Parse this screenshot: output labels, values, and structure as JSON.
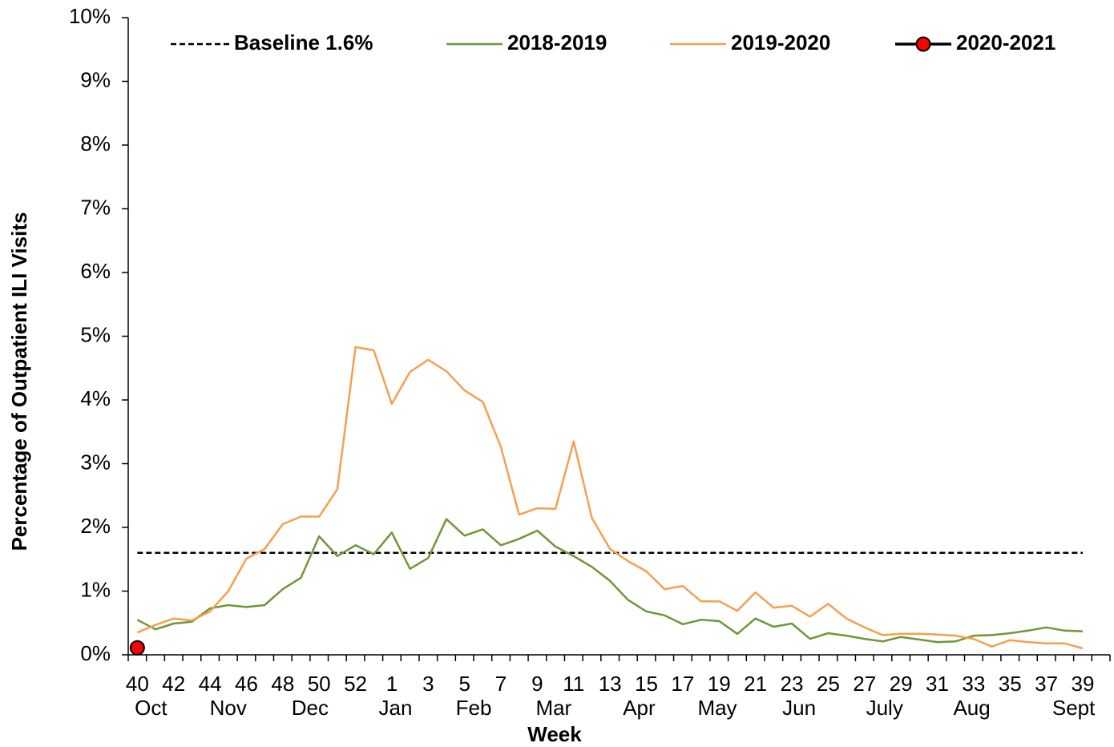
{
  "chart_data": {
    "type": "line",
    "xlabel": "Week",
    "ylabel": "Percentage of Outpatient ILI Visits",
    "categories": [
      "40",
      null,
      "42",
      null,
      "44",
      null,
      "46",
      null,
      "48",
      null,
      "50",
      null,
      "52",
      null,
      "1",
      null,
      "3",
      null,
      "5",
      null,
      "7",
      null,
      "9",
      null,
      "11",
      null,
      "13",
      null,
      "15",
      null,
      "17",
      null,
      "19",
      null,
      "21",
      null,
      "23",
      null,
      "25",
      null,
      "27",
      null,
      "29",
      null,
      "31",
      null,
      "33",
      null,
      "35",
      null,
      "37",
      null,
      "39"
    ],
    "months": [
      "Oct",
      "Nov",
      "Dec",
      "Jan",
      "Feb",
      "Mar",
      "Apr",
      "May",
      "Jun",
      "July",
      "Aug",
      "Sept"
    ],
    "ylim": [
      0,
      10
    ],
    "yticks": [
      {
        "value": 0,
        "label": "0%"
      },
      {
        "value": 1,
        "label": "1%"
      },
      {
        "value": 2,
        "label": "2%"
      },
      {
        "value": 3,
        "label": "3%"
      },
      {
        "value": 4,
        "label": "4%"
      },
      {
        "value": 5,
        "label": "5%"
      },
      {
        "value": 6,
        "label": "6%"
      },
      {
        "value": 7,
        "label": "7%"
      },
      {
        "value": 8,
        "label": "8%"
      },
      {
        "value": 9,
        "label": "9%"
      },
      {
        "value": 10,
        "label": "10%"
      }
    ],
    "baseline": {
      "name": "Baseline 1.6%",
      "value": 1.6,
      "color": "#000000"
    },
    "series": [
      {
        "name": "2018-2019",
        "color": "#70963a",
        "values": [
          0.55,
          0.4,
          0.49,
          0.52,
          0.73,
          0.78,
          0.75,
          0.78,
          1.03,
          1.21,
          1.86,
          1.55,
          1.72,
          1.58,
          1.92,
          1.35,
          1.52,
          2.13,
          1.87,
          1.97,
          1.72,
          1.82,
          1.95,
          1.7,
          1.55,
          1.38,
          1.16,
          0.86,
          0.68,
          0.62,
          0.48,
          0.55,
          0.53,
          0.33,
          0.57,
          0.44,
          0.49,
          0.25,
          0.34,
          0.3,
          0.25,
          0.21,
          0.28,
          0.24,
          0.2,
          0.21,
          0.3,
          0.31,
          0.34,
          0.38,
          0.43,
          0.38,
          0.37
        ]
      },
      {
        "name": "2019-2020",
        "color": "#f5a04f",
        "values": [
          0.35,
          0.47,
          0.57,
          0.54,
          0.68,
          1.0,
          1.51,
          1.66,
          2.05,
          2.17,
          2.17,
          2.6,
          4.83,
          4.78,
          3.94,
          4.44,
          4.63,
          4.45,
          4.15,
          3.97,
          3.26,
          2.2,
          2.3,
          2.29,
          3.35,
          2.15,
          1.66,
          1.47,
          1.31,
          1.03,
          1.08,
          0.84,
          0.84,
          0.69,
          0.98,
          0.74,
          0.77,
          0.6,
          0.8,
          0.57,
          0.43,
          0.31,
          0.33,
          0.33,
          0.32,
          0.3,
          0.25,
          0.13,
          0.23,
          0.2,
          0.18,
          0.18,
          0.1
        ]
      },
      {
        "name": "2020-2021",
        "color": "#000000",
        "marker_color": "#ff0000",
        "values": [
          0.11,
          null,
          null,
          null,
          null,
          null,
          null,
          null,
          null,
          null,
          null,
          null,
          null,
          null,
          null,
          null,
          null,
          null,
          null,
          null,
          null,
          null,
          null,
          null,
          null,
          null,
          null,
          null,
          null,
          null,
          null,
          null,
          null,
          null,
          null,
          null,
          null,
          null,
          null,
          null,
          null,
          null,
          null,
          null,
          null,
          null,
          null,
          null,
          null,
          null,
          null,
          null,
          null
        ]
      }
    ]
  }
}
